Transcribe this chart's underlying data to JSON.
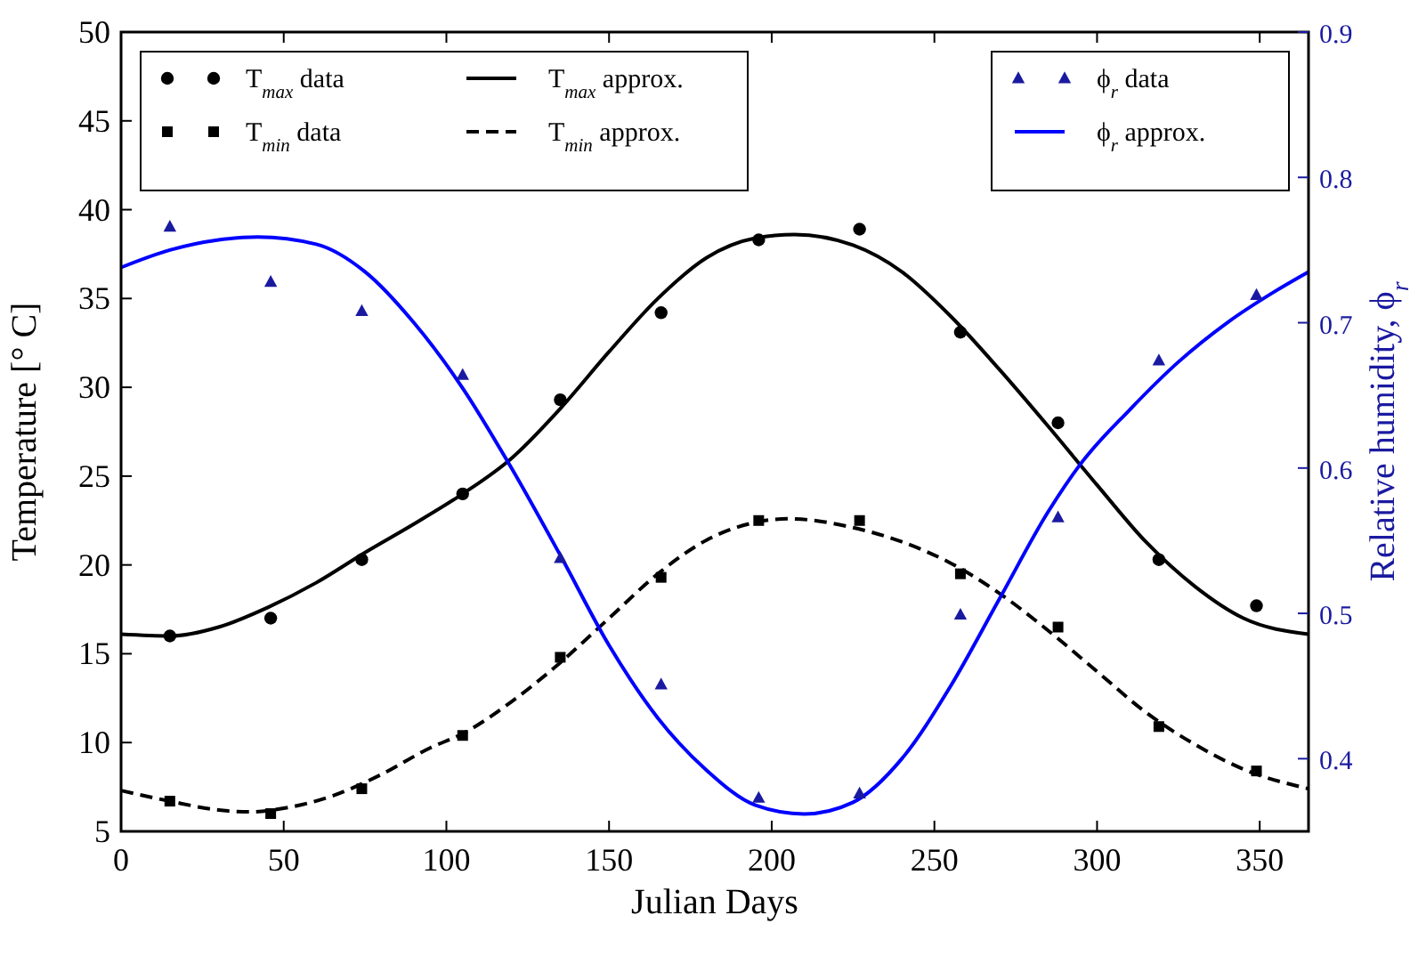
{
  "chart_data": {
    "type": "line",
    "xlabel": "Julian Days",
    "ylabel": "Temperature [° C]",
    "y2label": "Relative humidity, ϕ$_{r}$",
    "xlim": [
      0,
      365
    ],
    "xticks": [
      0,
      50,
      100,
      150,
      200,
      250,
      300,
      350
    ],
    "ylim": [
      5,
      50
    ],
    "yticks": [
      5,
      10,
      15,
      20,
      25,
      30,
      35,
      40,
      45,
      50
    ],
    "y2lim": [
      0.35,
      0.9
    ],
    "y2ticks": [
      {
        "value": 0.4,
        "label": "0.4"
      },
      {
        "value": 0.5,
        "label": "0.5"
      },
      {
        "value": 0.6,
        "label": "0.6"
      },
      {
        "value": 0.7,
        "label": "0.7"
      },
      {
        "value": 0.8,
        "label": "0.8"
      },
      {
        "value": 0.9,
        "label": "0.9"
      }
    ],
    "grid": false,
    "legend": "top",
    "series": [
      {
        "name": "T$_{max}$ data",
        "type": "scatter",
        "marker": "circle",
        "color": "#000000",
        "x": [
          15,
          46,
          74,
          105,
          135,
          166,
          196,
          227,
          258,
          288,
          319,
          349
        ],
        "values": [
          16,
          17,
          20.3,
          24,
          29.3,
          34.2,
          38.3,
          38.9,
          33.1,
          28,
          20.3,
          17.7
        ]
      },
      {
        "name": "T$_{min}$ data",
        "type": "scatter",
        "marker": "square",
        "color": "#000000",
        "x": [
          15,
          46,
          74,
          105,
          135,
          166,
          196,
          227,
          258,
          288,
          319,
          349
        ],
        "values": [
          6.7,
          6.0,
          7.4,
          10.4,
          14.8,
          19.3,
          22.5,
          22.5,
          19.5,
          16.5,
          10.9,
          8.4
        ]
      },
      {
        "name": "T$_{max}$ approx.",
        "line_style": "solid",
        "color": "#000000",
        "x": [
          0,
          15,
          30,
          45,
          60,
          75,
          90,
          105,
          120,
          135,
          150,
          165,
          180,
          195,
          207,
          225,
          240,
          255,
          270,
          285,
          300,
          315,
          330,
          345,
          365
        ],
        "values": [
          16.1,
          16.0,
          16.5,
          17.6,
          19.0,
          20.7,
          22.3,
          24.0,
          26.0,
          28.8,
          32.0,
          35.0,
          37.3,
          38.4,
          38.6,
          38.0,
          36.5,
          34.0,
          31.0,
          27.8,
          24.5,
          21.3,
          18.8,
          17.0,
          16.1
        ]
      },
      {
        "name": "T$_{min}$ approx.",
        "line_style": "dashed",
        "color": "#000000",
        "x": [
          0,
          15,
          30,
          40,
          50,
          65,
          80,
          95,
          105,
          120,
          135,
          150,
          165,
          180,
          195,
          205,
          225,
          240,
          255,
          270,
          285,
          300,
          315,
          330,
          345,
          365
        ],
        "values": [
          7.3,
          6.7,
          6.2,
          6.1,
          6.3,
          7.0,
          8.2,
          9.7,
          10.5,
          12.3,
          14.5,
          17.0,
          19.5,
          21.4,
          22.4,
          22.6,
          22.1,
          21.3,
          20.1,
          18.4,
          16.3,
          14.0,
          11.7,
          9.9,
          8.5,
          7.4
        ]
      },
      {
        "name": "ϕ$_{r}$ data",
        "type": "scatter",
        "marker": "triangle",
        "axis": "y2",
        "color": "#1a1aa0",
        "x": [
          15,
          46,
          74,
          105,
          135,
          166,
          196,
          227,
          258,
          288,
          319,
          349
        ],
        "values": [
          0.766,
          0.728,
          0.708,
          0.664,
          0.538,
          0.451,
          0.373,
          0.376,
          0.499,
          0.566,
          0.674,
          0.719
        ]
      },
      {
        "name": "ϕ$_{r}$ approx.",
        "line_style": "solid",
        "axis": "y2",
        "color": "#0000ff",
        "x": [
          0,
          15,
          30,
          42,
          60,
          75,
          90,
          105,
          120,
          135,
          150,
          165,
          180,
          195,
          210,
          225,
          240,
          255,
          270,
          285,
          295,
          310,
          325,
          340,
          355,
          365
        ],
        "values": [
          0.738,
          0.75,
          0.757,
          0.759,
          0.754,
          0.735,
          0.7,
          0.655,
          0.6,
          0.54,
          0.478,
          0.428,
          0.392,
          0.368,
          0.362,
          0.37,
          0.4,
          0.45,
          0.51,
          0.57,
          0.603,
          0.64,
          0.673,
          0.7,
          0.722,
          0.735
        ]
      }
    ]
  }
}
